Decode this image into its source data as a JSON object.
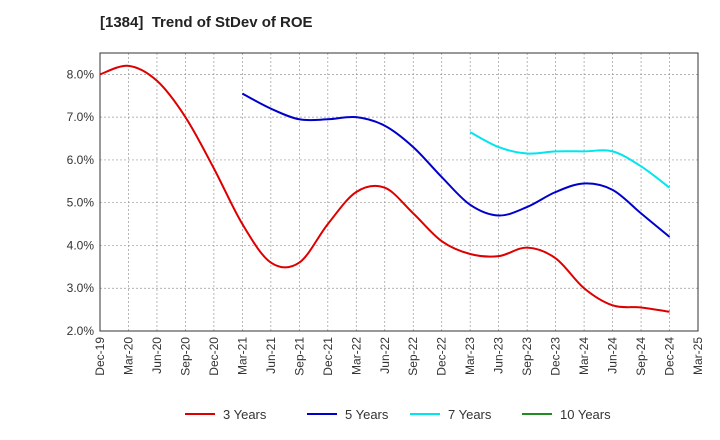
{
  "chart_data": {
    "type": "line",
    "title": "[1384]  Trend of StDev of ROE",
    "xlabel": "",
    "ylabel": "",
    "x_ticks": [
      "Dec-19",
      "Mar-20",
      "Jun-20",
      "Sep-20",
      "Dec-20",
      "Mar-21",
      "Jun-21",
      "Sep-21",
      "Dec-21",
      "Mar-22",
      "Jun-22",
      "Sep-22",
      "Dec-22",
      "Mar-23",
      "Jun-23",
      "Sep-23",
      "Dec-23",
      "Mar-24",
      "Jun-24",
      "Sep-24",
      "Dec-24",
      "Mar-25"
    ],
    "y_ticks": [
      "2.0%",
      "3.0%",
      "4.0%",
      "5.0%",
      "6.0%",
      "7.0%",
      "8.0%"
    ],
    "ylim": [
      2.0,
      8.5
    ],
    "grid": true,
    "legend_position": "bottom",
    "series": [
      {
        "name": "3 Years",
        "color": "#dd0000",
        "x": [
          "Dec-19",
          "Mar-20",
          "Jun-20",
          "Sep-20",
          "Dec-20",
          "Mar-21",
          "Jun-21",
          "Sep-21",
          "Dec-21",
          "Mar-22",
          "Jun-22",
          "Sep-22",
          "Dec-22",
          "Mar-23",
          "Jun-23",
          "Sep-23",
          "Dec-23",
          "Mar-24",
          "Jun-24",
          "Sep-24",
          "Dec-24"
        ],
        "values": [
          8.0,
          8.2,
          7.85,
          7.0,
          5.8,
          4.5,
          3.6,
          3.6,
          4.5,
          5.25,
          5.35,
          4.75,
          4.1,
          3.8,
          3.75,
          3.95,
          3.7,
          3.0,
          2.6,
          2.55,
          2.45
        ]
      },
      {
        "name": "5 Years",
        "color": "#0000cc",
        "x": [
          "Mar-21",
          "Jun-21",
          "Sep-21",
          "Dec-21",
          "Mar-22",
          "Jun-22",
          "Sep-22",
          "Dec-22",
          "Mar-23",
          "Jun-23",
          "Sep-23",
          "Dec-23",
          "Mar-24",
          "Jun-24",
          "Sep-24",
          "Dec-24"
        ],
        "values": [
          7.55,
          7.2,
          6.95,
          6.95,
          7.0,
          6.8,
          6.3,
          5.6,
          4.95,
          4.7,
          4.9,
          5.25,
          5.45,
          5.3,
          4.75,
          4.2
        ]
      },
      {
        "name": "7 Years",
        "color": "#00e5ee",
        "x": [
          "Mar-23",
          "Jun-23",
          "Sep-23",
          "Dec-23",
          "Mar-24",
          "Jun-24",
          "Sep-24",
          "Dec-24"
        ],
        "values": [
          6.65,
          6.3,
          6.15,
          6.2,
          6.2,
          6.2,
          5.85,
          5.35
        ]
      },
      {
        "name": "10 Years",
        "color": "#228b22",
        "x": [],
        "values": []
      }
    ]
  }
}
